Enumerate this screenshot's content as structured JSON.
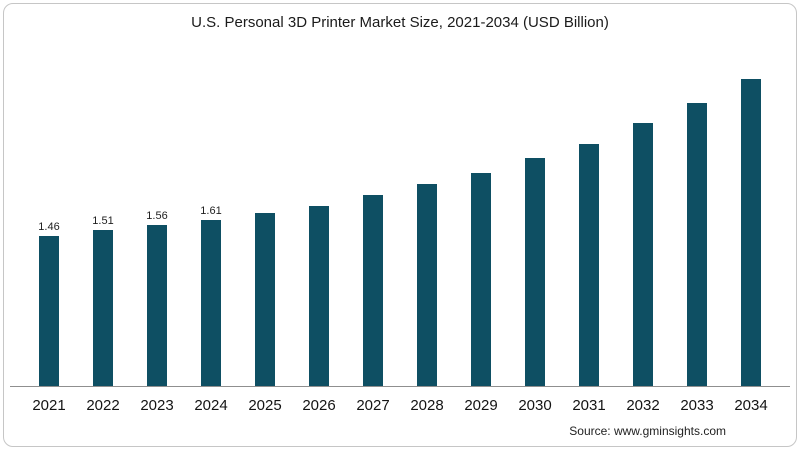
{
  "title": "U.S. Personal 3D Printer Market Size, 2021-2034 (USD Billion)",
  "source": "Source: www.gminsights.com",
  "colors": {
    "bar": "#0e4f63",
    "axis": "#8f8f8f",
    "border": "#c6c6c6"
  },
  "chart_data": {
    "type": "bar",
    "title": "U.S. Personal 3D Printer Market Size, 2021-2034 (USD Billion)",
    "categories": [
      "2021",
      "2022",
      "2023",
      "2024",
      "2025",
      "2026",
      "2027",
      "2028",
      "2029",
      "2030",
      "2031",
      "2032",
      "2033",
      "2034"
    ],
    "values": [
      1.46,
      1.51,
      1.56,
      1.61,
      1.68,
      1.75,
      1.85,
      1.96,
      2.07,
      2.21,
      2.35,
      2.55,
      2.75,
      2.98
    ],
    "data_labels": [
      "1.46",
      "1.51",
      "1.56",
      "1.61",
      "",
      "",
      "",
      "",
      "",
      "",
      "",
      "",
      "",
      ""
    ],
    "xlabel": "",
    "ylabel": "",
    "ylim": [
      0,
      3.2
    ],
    "grid": false,
    "legend": false,
    "bar_color": "#0e4f63"
  }
}
